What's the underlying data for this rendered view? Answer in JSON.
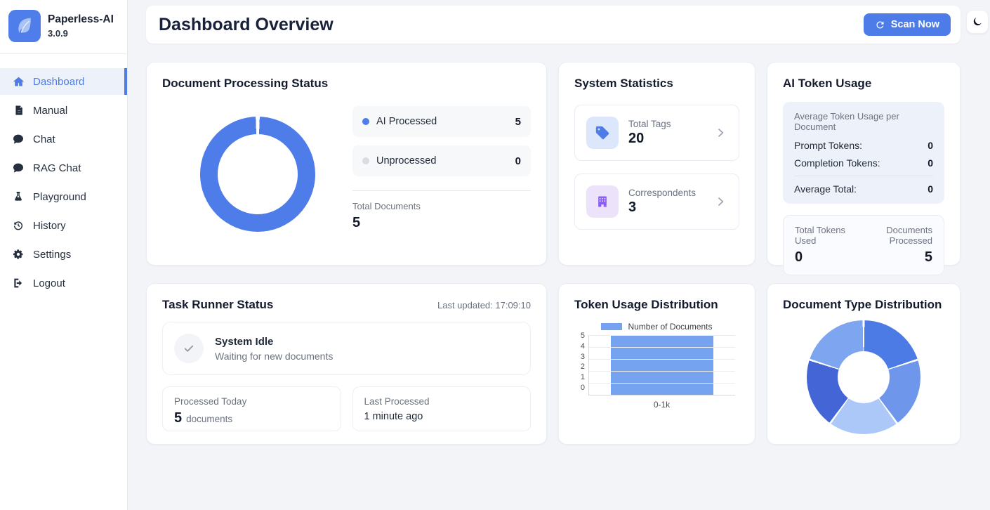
{
  "app": {
    "name": "Paperless-AI",
    "version": "3.0.9"
  },
  "sidebar": {
    "items": [
      {
        "label": "Dashboard",
        "icon": "home-icon",
        "active": true
      },
      {
        "label": "Manual",
        "icon": "document-icon",
        "active": false
      },
      {
        "label": "Chat",
        "icon": "chat-icon",
        "active": false
      },
      {
        "label": "RAG Chat",
        "icon": "chat-icon",
        "active": false
      },
      {
        "label": "Playground",
        "icon": "flask-icon",
        "active": false
      },
      {
        "label": "History",
        "icon": "history-icon",
        "active": false
      },
      {
        "label": "Settings",
        "icon": "gear-icon",
        "active": false
      },
      {
        "label": "Logout",
        "icon": "logout-icon",
        "active": false
      }
    ]
  },
  "header": {
    "title": "Dashboard Overview",
    "scan_label": "Scan Now"
  },
  "cards": {
    "processing": {
      "title": "Document Processing Status",
      "legend": [
        {
          "label": "AI Processed",
          "value": 5,
          "color": "#4e7ce8"
        },
        {
          "label": "Unprocessed",
          "value": 0,
          "color": "#d9dce1"
        }
      ],
      "total_label": "Total Documents",
      "total_value": 5,
      "chart": {
        "type": "doughnut",
        "values": [
          5,
          0
        ],
        "colors": [
          "#4e7ce8",
          "#d9dce1"
        ],
        "gap_deg": 4
      }
    },
    "stats": {
      "title": "System Statistics",
      "items": [
        {
          "icon": "tag-icon",
          "label": "Total Tags",
          "value": 20
        },
        {
          "icon": "building-icon",
          "label": "Correspondents",
          "value": 3
        }
      ]
    },
    "tokens": {
      "title": "AI Token Usage",
      "avg_heading": "Average Token Usage per Document",
      "rows": [
        {
          "label": "Prompt Tokens:",
          "value": 0
        },
        {
          "label": "Completion Tokens:",
          "value": 0
        }
      ],
      "total_row": {
        "label": "Average Total:",
        "value": 0
      },
      "totals_left": {
        "label": "Total Tokens Used",
        "value": 0
      },
      "totals_right": {
        "label": "Documents Processed",
        "value": 5
      }
    },
    "task": {
      "title": "Task Runner Status",
      "last_updated": "Last updated: 17:09:10",
      "status_title": "System Idle",
      "status_subtitle": "Waiting for new documents",
      "processed": {
        "label": "Processed Today",
        "value": 5,
        "unit": "documents"
      },
      "last": {
        "label": "Last Processed",
        "value": "1 minute ago"
      }
    },
    "token_dist": {
      "title": "Token Usage Distribution",
      "chart_data": {
        "type": "bar",
        "categories": [
          "0-1k"
        ],
        "values": [
          5
        ],
        "legend": "Number of Documents",
        "ylim": [
          0,
          5
        ],
        "yticks": [
          5,
          4,
          3,
          2,
          1,
          0
        ],
        "bar_color": "#76a3f0",
        "grid": true,
        "legend_position": "top"
      }
    },
    "doc_type": {
      "title": "Document Type Distribution",
      "chart_data": {
        "type": "doughnut",
        "values": [
          1,
          1,
          1,
          1,
          1
        ],
        "colors": [
          "#4c7be6",
          "#6e97eb",
          "#abc8f8",
          "#4365d5",
          "#7ea6f0"
        ],
        "gap_deg": 2
      }
    }
  }
}
